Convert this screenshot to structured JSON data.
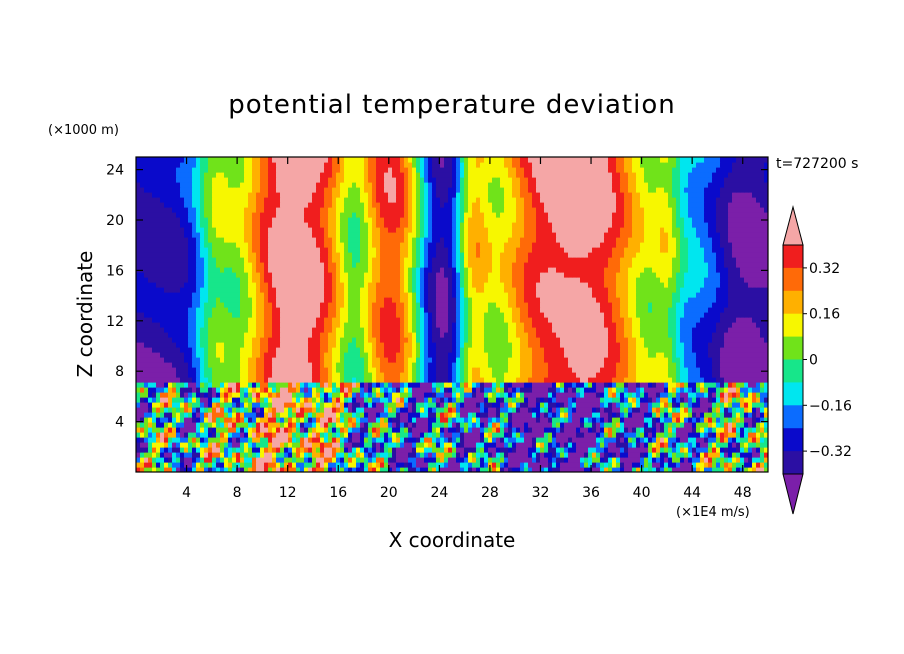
{
  "chart_data": {
    "type": "heatmap",
    "title": "potential temperature deviation",
    "xlabel": "X coordinate",
    "ylabel": "Z coordinate",
    "x_unit": "(×1E4 m/s)",
    "y_unit": "(×1000 m)",
    "time_label": "t=727200 s",
    "xlim": [
      0,
      50
    ],
    "ylim": [
      0,
      25
    ],
    "x_ticks": [
      4,
      8,
      12,
      16,
      20,
      24,
      28,
      32,
      36,
      40,
      44,
      48
    ],
    "y_ticks": [
      4,
      8,
      12,
      16,
      20,
      24
    ],
    "colorbar": {
      "levels": [
        -0.4,
        -0.32,
        -0.24,
        -0.16,
        -0.08,
        0,
        0.08,
        0.16,
        0.24,
        0.32,
        0.4
      ],
      "tick_labels": [
        "0.32",
        "0.16",
        "0",
        "−0.16",
        "−0.32"
      ],
      "tick_values": [
        0.32,
        0.16,
        0,
        -0.16,
        -0.32
      ],
      "colors": [
        "#7b1fa9",
        "#2b0fa3",
        "#0a0acb",
        "#0b6cff",
        "#00e6ef",
        "#17e68a",
        "#70e31a",
        "#f7f700",
        "#ffb000",
        "#ff6a08",
        "#f01e1e",
        "#f5a6a6"
      ],
      "extend": "both",
      "placement": "right"
    },
    "grid": false
  }
}
